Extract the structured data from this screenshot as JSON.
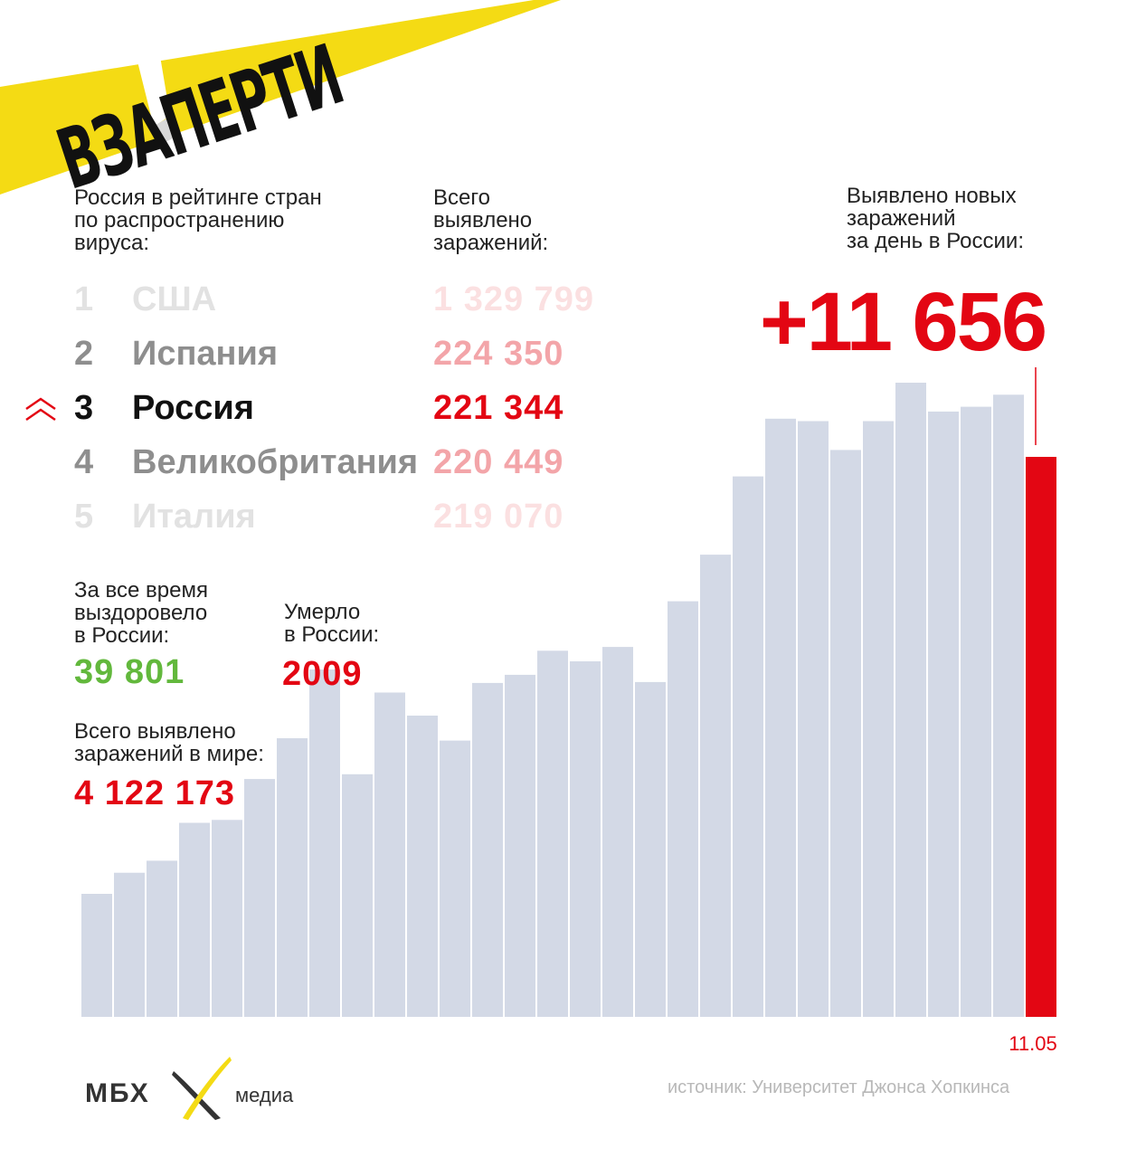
{
  "header": {
    "brand_title": "ВЗАПЕРТИ",
    "accent_yellow": "#f4db14",
    "accent_red": "#e30613"
  },
  "ranking": {
    "label": "Россия в рейтинге стран\nпо распространению\nвируса:",
    "cases_label": "Всего\nвыявлено\nзаражений:",
    "rows": [
      {
        "rank": "1",
        "country": "США",
        "cases": "1 329 799"
      },
      {
        "rank": "2",
        "country": "Испания",
        "cases": "224 350"
      },
      {
        "rank": "3",
        "country": "Россия",
        "cases": "221 344"
      },
      {
        "rank": "4",
        "country": "Великобритания",
        "cases": "220 449"
      },
      {
        "rank": "5",
        "country": "Италия",
        "cases": "219 070"
      }
    ],
    "highlight_icon": "double-chevron-up-icon"
  },
  "daily": {
    "label": "Выявлено новых\nзаражений\nза день в России:",
    "value": "+11 656"
  },
  "recovered": {
    "label": "За все время\nвыздоровело\nв России:",
    "value": "39 801",
    "color": "#62b83c"
  },
  "deaths": {
    "label": "Умерло\nв России:",
    "value": "2009"
  },
  "world": {
    "label": "Всего выявлено\nзаражений в мире:",
    "value": "4 122 173"
  },
  "chart_data": {
    "type": "bar",
    "x_end_label": "11.05",
    "values": [
      2560,
      3000,
      3250,
      4040,
      4100,
      4950,
      5800,
      7230,
      5050,
      6750,
      6270,
      5750,
      6950,
      7120,
      7620,
      7400,
      7700,
      6970,
      8650,
      9620,
      11250,
      12450,
      12400,
      11800,
      12400,
      13200,
      12600,
      12700,
      12950,
      11656
    ],
    "highlight_index": 29,
    "bar_color": "#d3d9e6",
    "highlight_color": "#e30613"
  },
  "footer": {
    "logo": "МБХ",
    "logo_suffix": "медиа",
    "source": "источник: Университет Джонса Хопкинса"
  }
}
